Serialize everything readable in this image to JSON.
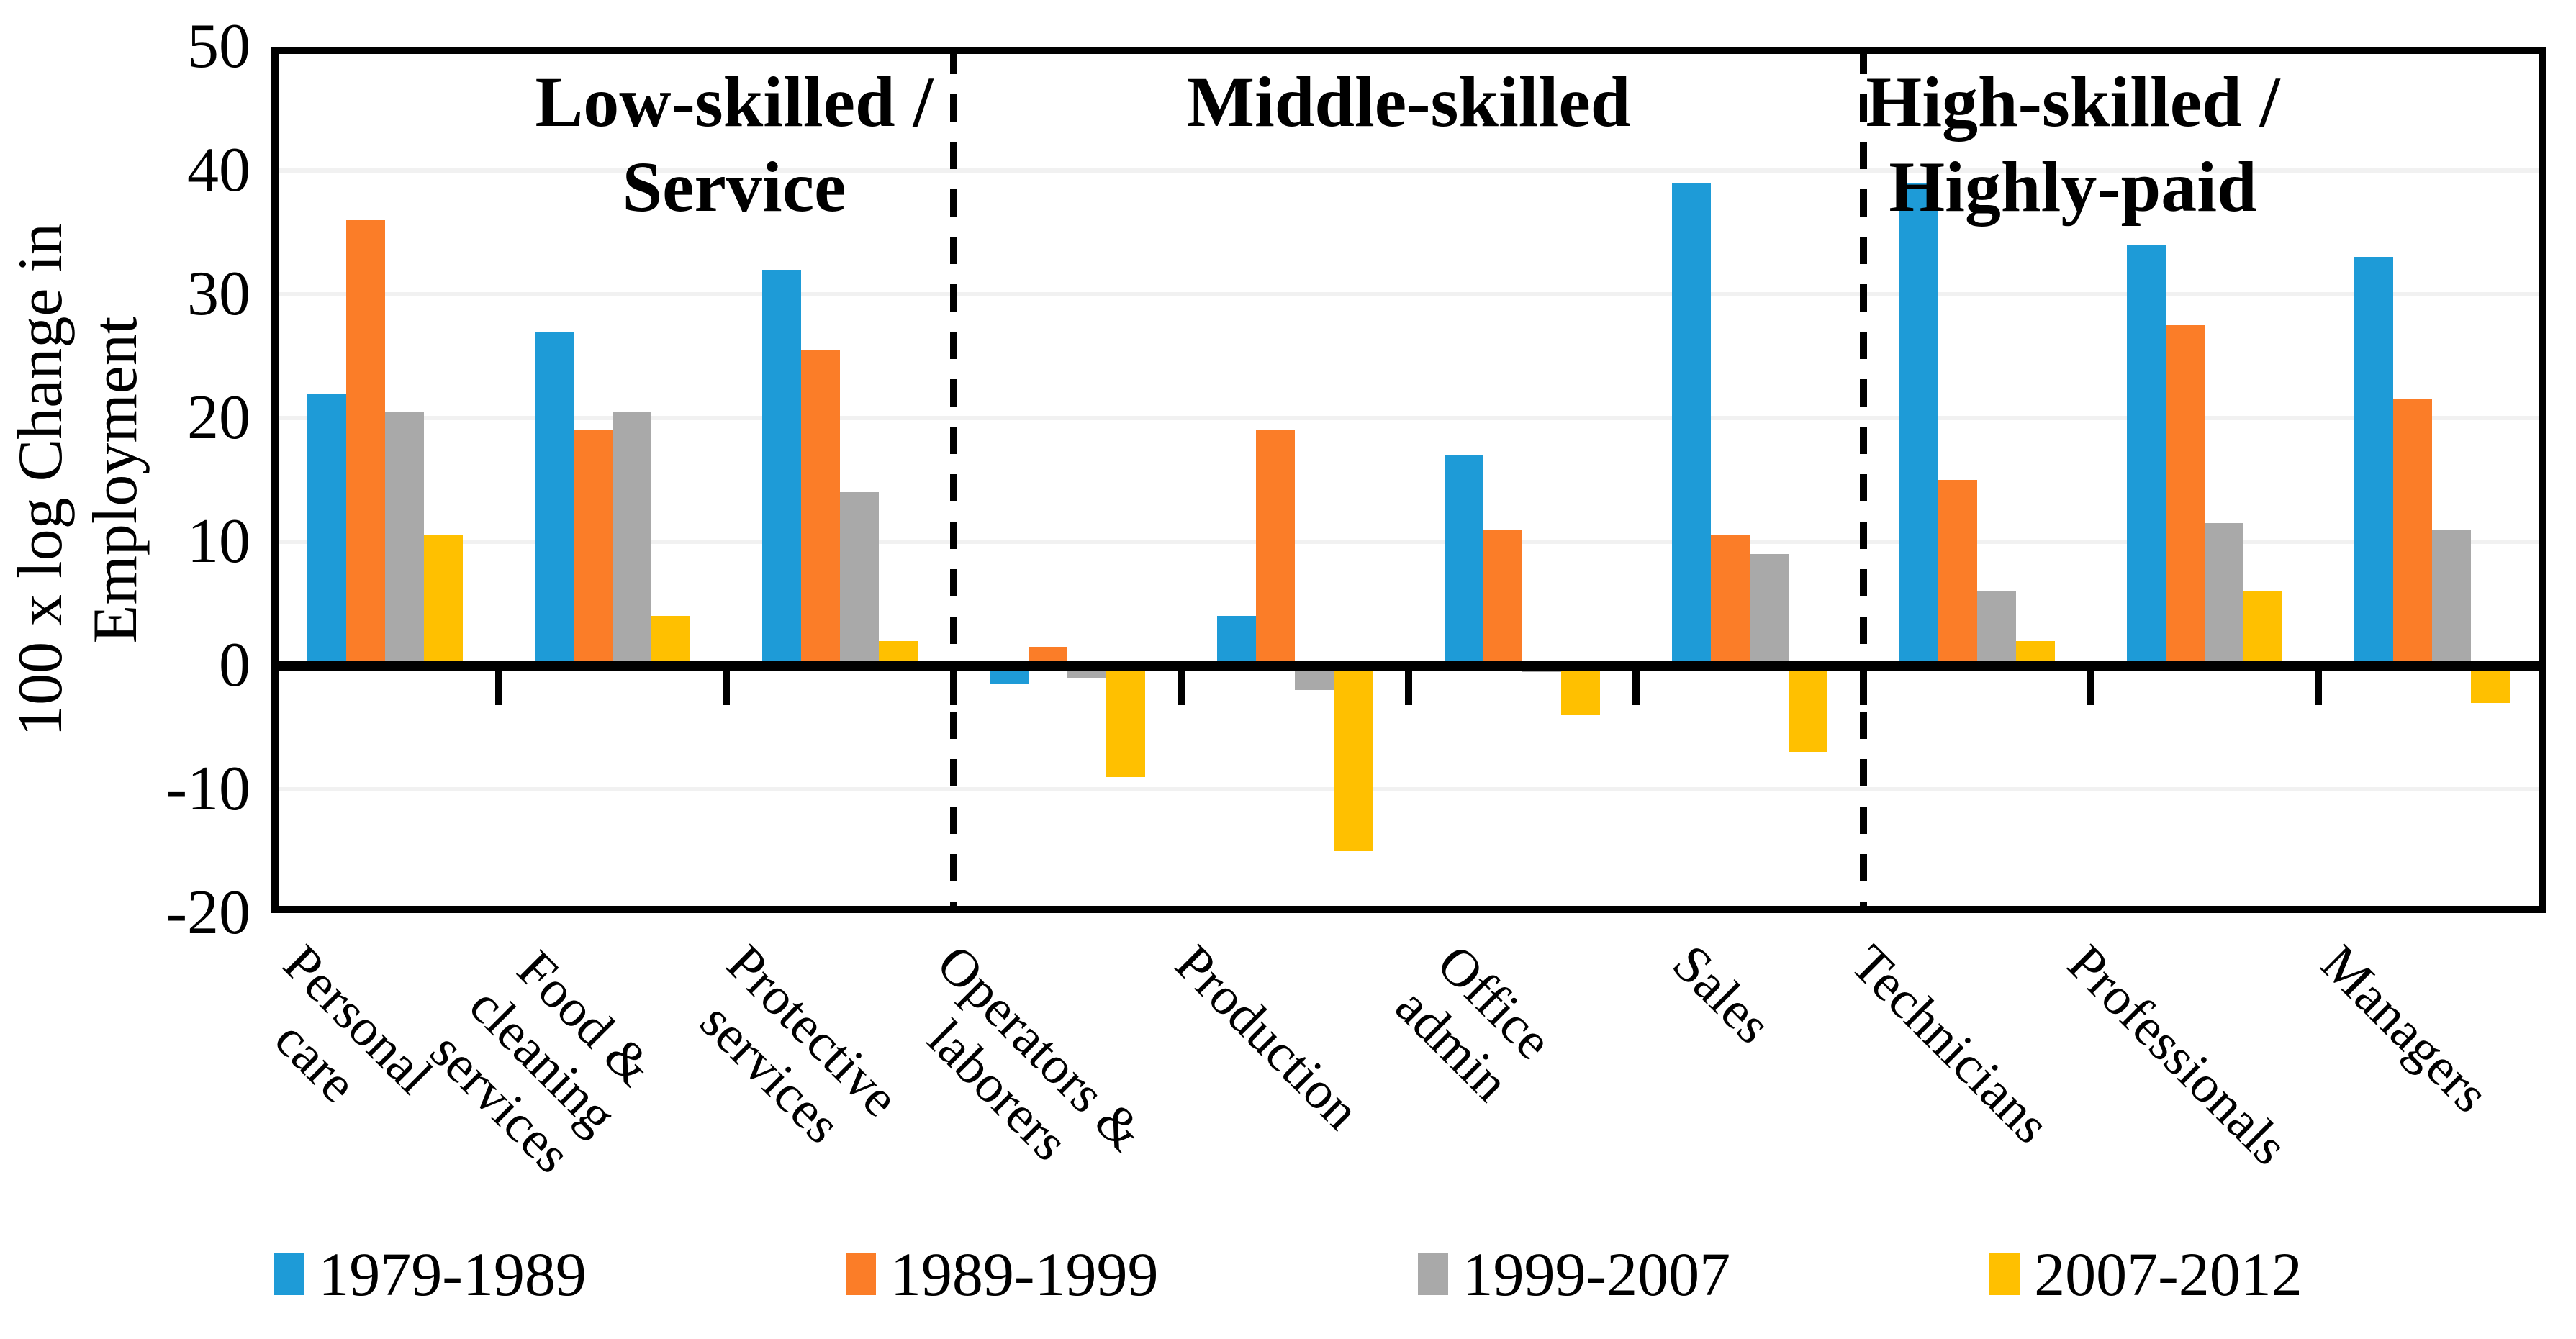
{
  "chart_data": {
    "type": "bar",
    "title": "",
    "ylabel_lines": [
      "100 x log Change in",
      "Employment"
    ],
    "ylim": [
      -20,
      50
    ],
    "ytick_interval": 10,
    "yticks": [
      50,
      40,
      30,
      20,
      10,
      0,
      -10,
      -20
    ],
    "grid": true,
    "legend_position": "bottom",
    "zero_axis": true,
    "categories": [
      {
        "label_lines": [
          "Personal",
          "care"
        ]
      },
      {
        "label_lines": [
          "Food &",
          "cleaning",
          "services"
        ]
      },
      {
        "label_lines": [
          "Protective",
          "services"
        ]
      },
      {
        "label_lines": [
          "Operators &",
          "laborers"
        ]
      },
      {
        "label_lines": [
          "Production"
        ]
      },
      {
        "label_lines": [
          "Office",
          "admin"
        ]
      },
      {
        "label_lines": [
          "Sales"
        ]
      },
      {
        "label_lines": [
          "Technicians"
        ]
      },
      {
        "label_lines": [
          "Professionals"
        ]
      },
      {
        "label_lines": [
          "Managers"
        ]
      }
    ],
    "series": [
      {
        "name": "1979-1989",
        "color": "#1E9BD7",
        "values": [
          22,
          27,
          32,
          -1.5,
          4,
          17,
          39,
          39,
          34,
          33
        ]
      },
      {
        "name": "1989-1999",
        "color": "#FB7D28",
        "values": [
          36,
          19,
          25.5,
          1.5,
          19,
          11,
          10.5,
          15,
          27.5,
          21.5
        ]
      },
      {
        "name": "1999-2007",
        "color": "#A9A9A9",
        "values": [
          20.5,
          20.5,
          14,
          -1,
          -2,
          -0.5,
          9,
          6,
          11.5,
          11
        ]
      },
      {
        "name": "2007-2012",
        "color": "#FFC000",
        "values": [
          10.5,
          4,
          2,
          -9,
          -15,
          -4,
          -7,
          2,
          6,
          -3
        ]
      }
    ],
    "sections": [
      {
        "title_lines": [
          "Low-skilled /",
          "Service"
        ],
        "from": 0,
        "to": 2,
        "title_center_x": 1020
      },
      {
        "title_lines": [
          "Middle-skilled"
        ],
        "from": 3,
        "to": 6,
        "title_center_x": 1957
      },
      {
        "title_lines": [
          "High-skilled /",
          "Highly-paid"
        ],
        "from": 7,
        "to": 9,
        "title_center_x": 2880
      }
    ],
    "colors": {
      "gridline": "#F1F1F1",
      "axis": "#000000",
      "background": "#FFFFFF"
    }
  }
}
